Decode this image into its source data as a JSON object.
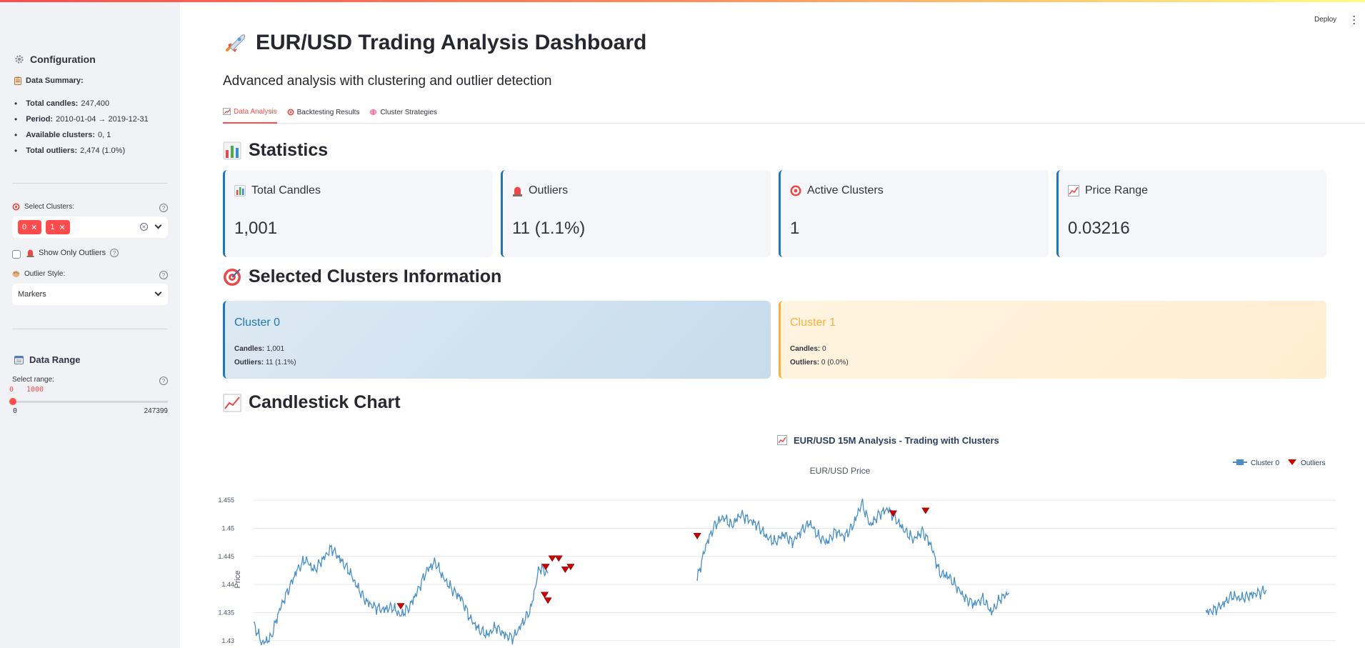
{
  "app": {
    "deploy_label": "Deploy"
  },
  "sidebar": {
    "title": "Configuration",
    "summary_title": "Data Summary:",
    "summary": [
      {
        "key": "Total candles:",
        "value": "247,400"
      },
      {
        "key": "Period:",
        "value": "2010-01-04 → 2019-12-31"
      },
      {
        "key": "Available clusters:",
        "value": "0, 1"
      },
      {
        "key": "Total outliers:",
        "value": "2,474 (1.0%)"
      }
    ],
    "select_clusters_label": "Select Clusters:",
    "selected_clusters": [
      "0",
      "1"
    ],
    "show_outliers_label": "Show Only Outliers",
    "outlier_style_label": "Outlier Style:",
    "outlier_style_value": "Markers",
    "data_range_title": "Data Range",
    "select_range_label": "Select range:",
    "range_low": "0",
    "range_high": "1000",
    "range_min": "0",
    "range_max": "247399"
  },
  "main": {
    "title": "EUR/USD Trading Analysis Dashboard",
    "subtitle": "Advanced analysis with clustering and outlier detection",
    "tabs": [
      {
        "label": "Data Analysis"
      },
      {
        "label": "Backtesting Results"
      },
      {
        "label": "Cluster Strategies"
      }
    ],
    "statistics_title": "Statistics",
    "cards": [
      {
        "title": "Total Candles",
        "value": "1,001"
      },
      {
        "title": "Outliers",
        "value": "11 (1.1%)"
      },
      {
        "title": "Active Clusters",
        "value": "1"
      },
      {
        "title": "Price Range",
        "value": "0.03216"
      }
    ],
    "clusters_title": "Selected Clusters Information",
    "clusters": [
      {
        "name": "Cluster 0",
        "candles_label": "Candles:",
        "candles": "1,001",
        "outliers_label": "Outliers:",
        "outliers": "11 (1.1%)"
      },
      {
        "name": "Cluster 1",
        "candles_label": "Candles:",
        "candles": "0",
        "outliers_label": "Outliers:",
        "outliers": "0 (0.0%)"
      }
    ],
    "chart_section_title": "Candlestick Chart"
  },
  "colors": {
    "accent": "#ff4b4b",
    "cluster0": "#1f77b4",
    "cluster1": "#f5b041",
    "series": "#4a8fc4",
    "outlier": "#cc0000"
  },
  "chart_data": {
    "type": "line",
    "title": "EUR/USD 15M Analysis - Trading with Clusters",
    "subplot_title": "EUR/USD Price",
    "ylabel": "Price",
    "ylim": [
      1.4287,
      1.4582
    ],
    "yticks": [
      "1.455",
      "1.45",
      "1.445",
      "1.44",
      "1.435",
      "1.43"
    ],
    "ytick_values": [
      1.455,
      1.45,
      1.445,
      1.44,
      1.435,
      1.43
    ],
    "xlim": [
      0,
      1000
    ],
    "legend": [
      "Cluster 0",
      "Outliers"
    ],
    "legend_position": "top-right",
    "series": [
      {
        "name": "Cluster 0",
        "segments": [
          {
            "x": [
              0,
              8,
              16,
              24,
              32,
              40,
              48,
              56,
              64,
              72,
              80,
              88,
              96,
              104,
              112,
              120,
              128,
              136,
              144,
              152,
              160,
              168,
              176,
              184,
              192,
              200,
              208,
              216,
              224,
              232,
              240,
              248,
              256,
              264,
              272
            ],
            "y": [
              1.433,
              1.4295,
              1.4305,
              1.4355,
              1.439,
              1.4425,
              1.4445,
              1.4425,
              1.4445,
              1.4465,
              1.4445,
              1.4425,
              1.4395,
              1.437,
              1.436,
              1.4355,
              1.436,
              1.4345,
              1.436,
              1.439,
              1.4425,
              1.444,
              1.441,
              1.439,
              1.4375,
              1.434,
              1.432,
              1.431,
              1.4325,
              1.431,
              1.4305,
              1.433,
              1.4355,
              1.443,
              1.442
            ]
          },
          {
            "x": [
              410,
              418,
              426,
              434,
              442,
              450,
              458,
              466,
              474,
              482,
              490,
              498,
              506,
              514,
              522,
              530,
              538,
              546,
              554,
              562,
              570,
              578,
              586,
              594,
              602,
              610,
              618,
              626,
              634,
              642,
              650,
              658,
              666,
              674,
              682,
              690,
              698
            ],
            "y": [
              1.441,
              1.447,
              1.4505,
              1.452,
              1.4505,
              1.4525,
              1.4515,
              1.4505,
              1.4485,
              1.4475,
              1.449,
              1.4475,
              1.4495,
              1.451,
              1.4485,
              1.4475,
              1.4495,
              1.4485,
              1.4505,
              1.4545,
              1.4505,
              1.4525,
              1.4535,
              1.4515,
              1.4495,
              1.448,
              1.4495,
              1.447,
              1.442,
              1.4415,
              1.4395,
              1.4375,
              1.4365,
              1.4375,
              1.435,
              1.4375,
              1.4385
            ]
          },
          {
            "x": [
              880,
              888,
              896,
              904,
              912,
              920,
              928,
              936
            ],
            "y": [
              1.435,
              1.4355,
              1.4365,
              1.438,
              1.4375,
              1.438,
              1.4385,
              1.439
            ]
          }
        ]
      },
      {
        "name": "Outliers",
        "x": [
          136,
          270,
          272,
          269,
          276,
          282,
          288,
          293,
          410,
          591,
          621
        ],
        "y": [
          1.436,
          1.443,
          1.437,
          1.438,
          1.4445,
          1.4445,
          1.4425,
          1.443,
          1.4485,
          1.4525,
          1.453
        ]
      }
    ]
  }
}
